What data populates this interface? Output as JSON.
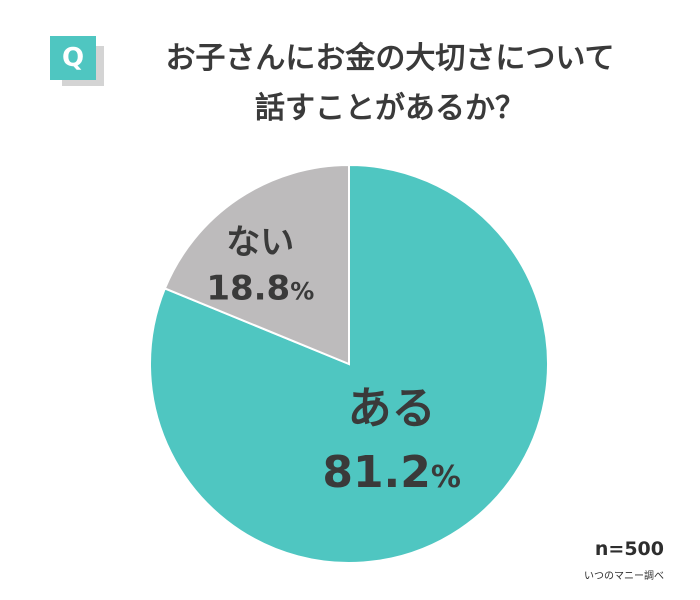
{
  "question_badge": "Q",
  "title_lines": [
    "お子さんにお金の大切さについて",
    "話すことがあるか？"
  ],
  "colors": {
    "accent": "#4fc6c1",
    "secondary": "#bdbbbc",
    "text": "#3a3a3a"
  },
  "chart_data": {
    "type": "pie",
    "title": "お子さんにお金の大切さについて話すことがあるか？",
    "slices": [
      {
        "label": "ある",
        "value": 81.2,
        "display": "81.2",
        "unit": "%",
        "color": "#4fc6c1"
      },
      {
        "label": "ない",
        "value": 18.8,
        "display": "18.8",
        "unit": "%",
        "color": "#bdbbbc"
      }
    ],
    "start": "12 o'clock",
    "direction": "clockwise"
  },
  "sample_size": "n=500",
  "source": "いつのマニー調べ"
}
